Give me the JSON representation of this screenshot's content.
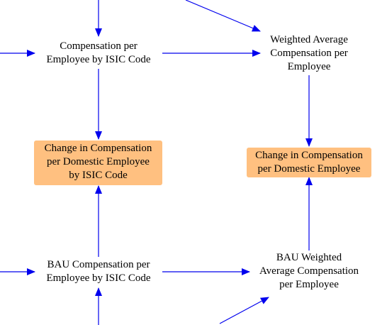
{
  "diagram": {
    "arrow_color": "#0000EE",
    "highlight_color": "#FFC080",
    "nodes": {
      "comp_per_emp_isic": "Compensation per\nEmployee by ISIC Code",
      "weighted_avg_comp": "Weighted Average\nCompensation per\nEmployee",
      "change_comp_domestic_isic": "Change in Compensation\nper Domestic Employee\nby ISIC Code",
      "change_comp_domestic": "Change in Compensation\nper Domestic Employee",
      "bau_comp_per_emp_isic": "BAU Compensation per\nEmployee by ISIC Code",
      "bau_weighted_avg_comp": "BAU Weighted\nAverage Compensation\nper Employee"
    }
  }
}
